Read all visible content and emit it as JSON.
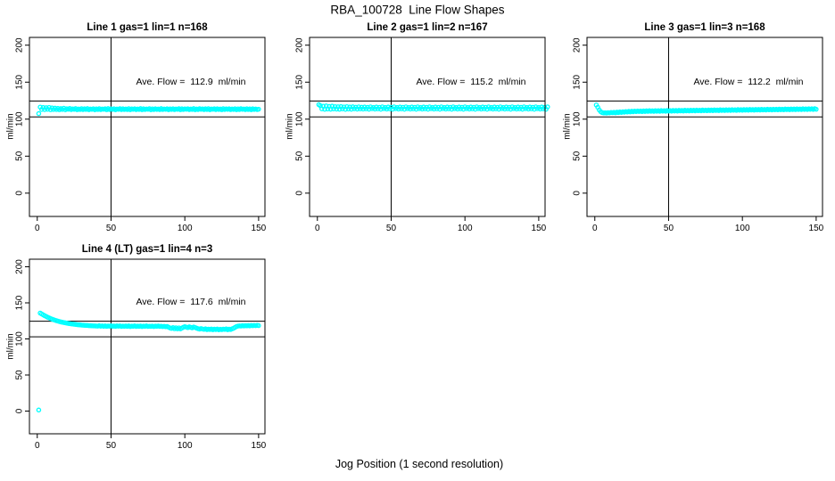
{
  "figure": {
    "title": "RBA_100728  Line Flow Shapes",
    "xlabel": "Jog Position (1 second resolution)",
    "ylabel": "ml/min",
    "bg": "#ffffff",
    "fg": "#000000",
    "point_color": "#00FFFF"
  },
  "axes": {
    "x_ticks": [
      0,
      50,
      100,
      150
    ],
    "y_ticks": [
      0,
      50,
      100,
      150,
      200
    ],
    "xlim": [
      -5.3,
      154.3
    ],
    "ylim": [
      -31.5,
      210.5
    ],
    "ref_vline_x": 50,
    "ref_hlines": [
      124.5,
      103
    ]
  },
  "chart_data": [
    {
      "type": "scatter",
      "title": "Line 1 gas=1 lin=1 n=168",
      "annotation": "Ave. Flow =  112.9  ml/min",
      "ave_flow": 112.9,
      "n": 168,
      "x_start": 1,
      "x_step": 1,
      "y": [
        107.5,
        116.3,
        113.2,
        115.8,
        112.9,
        115.5,
        113.4,
        115.9,
        112.8,
        115.2,
        113.1,
        114.9,
        113.0,
        114.6,
        112.8,
        114.3,
        113.2,
        114.8,
        112.7,
        114.1,
        113.4,
        114.5,
        112.9,
        113.9,
        113.3,
        114.4,
        112.8,
        113.8,
        113.1,
        114.2,
        112.9,
        114.0,
        113.2,
        114.3,
        112.8,
        113.7,
        113.3,
        114.1,
        112.7,
        113.9,
        113.1,
        114.2,
        112.9,
        113.8,
        113.4,
        114.0,
        112.8,
        114.3,
        113.0,
        113.9,
        113.2,
        114.1,
        112.7,
        113.8,
        113.3,
        114.2,
        112.9,
        114.0,
        113.1,
        113.7,
        113.0,
        114.2,
        112.8,
        113.9,
        113.3,
        114.1,
        112.9,
        113.7,
        113.2,
        114.3,
        112.8,
        114.0,
        113.1,
        113.8,
        113.4,
        114.2,
        112.7,
        113.9,
        113.0,
        114.1,
        113.2,
        113.8,
        112.9,
        114.3,
        113.1,
        113.7,
        113.3,
        114.0,
        112.8,
        113.9,
        113.2,
        114.1,
        112.9,
        113.8,
        113.3,
        114.2,
        112.8,
        114.0,
        113.1,
        113.9,
        113.4,
        114.1,
        112.9,
        113.7,
        113.2,
        114.3,
        112.8,
        113.8,
        113.0,
        114.2,
        113.3,
        113.9,
        112.9,
        114.0,
        113.1,
        114.2,
        112.8,
        113.7,
        113.4,
        114.1,
        112.9,
        114.0,
        113.2,
        113.8,
        112.8,
        114.2,
        113.1,
        113.9,
        113.3,
        114.0,
        112.9,
        113.7,
        113.2,
        114.1,
        112.8,
        113.9,
        113.0,
        114.2,
        113.3,
        113.8,
        112.9,
        114.1,
        113.1,
        113.9,
        112.8,
        114.0,
        113.2,
        113.7,
        113.0,
        113.5
      ]
    },
    {
      "type": "scatter",
      "title": "Line 2 gas=1 lin=2 n=167",
      "annotation": "Ave. Flow =  115.2  ml/min",
      "ave_flow": 115.2,
      "n": 167,
      "x_start": 1,
      "x_step": 1,
      "y": [
        119.6,
        118.2,
        114.0,
        117.5,
        113.4,
        117.9,
        113.8,
        117.2,
        113.5,
        117.6,
        113.9,
        116.9,
        113.6,
        116.8,
        113.4,
        117.0,
        114.0,
        116.5,
        113.3,
        116.9,
        113.8,
        116.4,
        113.5,
        116.7,
        114.1,
        116.2,
        113.6,
        116.6,
        113.9,
        116.1,
        113.7,
        116.4,
        114.0,
        116.0,
        113.5,
        116.6,
        114.2,
        115.8,
        113.7,
        116.4,
        114.0,
        116.0,
        113.5,
        116.6,
        114.2,
        115.8,
        113.7,
        116.4,
        114.0,
        116.0,
        113.5,
        116.6,
        114.2,
        115.8,
        113.7,
        116.4,
        114.0,
        116.0,
        113.5,
        116.6,
        114.2,
        115.8,
        113.7,
        116.4,
        114.0,
        116.0,
        113.5,
        116.6,
        114.2,
        115.8,
        113.7,
        116.4,
        114.0,
        116.0,
        113.5,
        116.6,
        114.2,
        115.8,
        113.7,
        116.4,
        114.0,
        116.0,
        113.5,
        116.6,
        114.2,
        115.8,
        113.7,
        116.4,
        114.0,
        116.0,
        113.5,
        116.6,
        114.2,
        115.8,
        113.7,
        116.4,
        114.0,
        116.0,
        113.5,
        116.6,
        114.2,
        115.8,
        113.7,
        116.4,
        114.0,
        116.0,
        113.5,
        116.6,
        114.2,
        115.8,
        113.7,
        116.4,
        114.0,
        116.0,
        113.5,
        116.6,
        114.2,
        115.8,
        113.7,
        116.4,
        114.0,
        116.0,
        113.5,
        116.6,
        114.2,
        115.8,
        113.7,
        116.4,
        114.0,
        116.0,
        113.5,
        116.6,
        114.2,
        115.8,
        113.7,
        116.4,
        114.0,
        116.0,
        113.5,
        116.6,
        114.2,
        115.8,
        113.7,
        116.4,
        114.0,
        116.0,
        113.5,
        116.6,
        114.2,
        115.8,
        113.7,
        116.4,
        114.0,
        116.0,
        113.5,
        116.6
      ]
    },
    {
      "type": "scatter",
      "title": "Line 3 gas=1 lin=3 n=168",
      "annotation": "Ave. Flow =  112.2  ml/min",
      "ave_flow": 112.2,
      "n": 168,
      "x_start": 1,
      "x_step": 1,
      "y": [
        119.2,
        116.0,
        112.5,
        110.0,
        108.9,
        108.4,
        108.6,
        108.3,
        108.8,
        108.5,
        109.0,
        108.7,
        109.2,
        108.6,
        109.5,
        108.9,
        109.8,
        109.1,
        110.0,
        109.4,
        110.3,
        109.6,
        110.5,
        109.8,
        110.7,
        110.0,
        110.9,
        110.2,
        111.0,
        110.4,
        111.0,
        110.2,
        111.2,
        110.4,
        111.3,
        110.5,
        111.4,
        110.6,
        111.3,
        110.5,
        111.5,
        110.7,
        111.4,
        110.6,
        111.6,
        110.8,
        111.5,
        110.7,
        111.7,
        110.9,
        111.6,
        110.8,
        111.8,
        111.0,
        111.7,
        110.9,
        111.9,
        111.1,
        111.8,
        111.0,
        112.0,
        111.2,
        111.9,
        111.1,
        112.1,
        111.3,
        112.0,
        111.2,
        112.2,
        111.4,
        112.1,
        111.3,
        112.3,
        111.5,
        112.2,
        111.4,
        112.4,
        111.6,
        112.3,
        111.5,
        112.5,
        111.7,
        112.4,
        111.6,
        112.6,
        111.8,
        112.5,
        111.7,
        112.7,
        111.9,
        112.6,
        111.8,
        112.8,
        112.0,
        112.7,
        111.9,
        112.9,
        112.1,
        112.8,
        112.0,
        113.0,
        112.2,
        112.9,
        112.1,
        113.1,
        112.3,
        113.0,
        112.2,
        113.2,
        112.4,
        113.1,
        112.3,
        113.3,
        112.5,
        113.2,
        112.4,
        113.4,
        112.6,
        113.3,
        112.5,
        113.5,
        112.7,
        113.4,
        112.6,
        113.6,
        112.8,
        113.5,
        112.7,
        113.7,
        112.9,
        113.6,
        112.8,
        113.8,
        113.0,
        113.7,
        112.9,
        113.9,
        113.1,
        113.8,
        113.0,
        114.0,
        113.2,
        113.9,
        113.1,
        114.1,
        113.3,
        114.0,
        113.2,
        114.2,
        113.4
      ]
    },
    {
      "type": "scatter",
      "title": "Line 4 (LT) gas=1 lin=4 n=3",
      "annotation": "Ave. Flow =  117.6  ml/min",
      "ave_flow": 117.6,
      "n": 3,
      "x_start": 1,
      "x_step": 1,
      "y": [
        1.5,
        135.8,
        134.6,
        133.4,
        132.2,
        131.2,
        130.1,
        129.2,
        128.3,
        127.5,
        126.7,
        126.0,
        125.3,
        124.7,
        124.1,
        123.6,
        123.1,
        122.7,
        122.3,
        121.9,
        121.5,
        121.2,
        120.9,
        120.6,
        120.3,
        120.1,
        119.8,
        119.6,
        119.4,
        119.2,
        119.0,
        118.9,
        118.7,
        118.6,
        118.4,
        118.3,
        118.2,
        118.1,
        118.0,
        117.9,
        117.8,
        118.3,
        117.6,
        118.1,
        117.5,
        118.0,
        117.4,
        117.9,
        117.6,
        118.2,
        117.5,
        117.9,
        117.4,
        118.0,
        117.6,
        118.1,
        117.3,
        117.8,
        117.5,
        117.9,
        117.4,
        118.0,
        117.2,
        117.8,
        117.5,
        118.1,
        117.3,
        117.7,
        117.4,
        117.9,
        117.2,
        117.8,
        117.5,
        118.0,
        117.3,
        117.6,
        117.4,
        117.8,
        117.2,
        117.7,
        117.5,
        117.9,
        117.3,
        117.6,
        117.1,
        117.5,
        116.9,
        117.3,
        116.3,
        115.2,
        114.6,
        115.8,
        114.2,
        115.5,
        114.0,
        115.3,
        113.9,
        115.1,
        116.2,
        117.0,
        116.4,
        115.7,
        116.8,
        116.0,
        115.4,
        116.5,
        115.8,
        114.9,
        114.2,
        113.6,
        114.4,
        113.8,
        113.3,
        114.0,
        112.9,
        113.6,
        113.1,
        113.8,
        112.8,
        113.5,
        113.0,
        113.7,
        112.7,
        113.4,
        112.9,
        113.6,
        113.2,
        113.9,
        112.8,
        113.5,
        113.1,
        114.0,
        114.8,
        116.0,
        117.2,
        117.8,
        118.1,
        117.9,
        118.3,
        118.0,
        118.4,
        118.2,
        118.5,
        118.1,
        118.6,
        118.3,
        118.7,
        118.4,
        118.8,
        118.5
      ]
    }
  ]
}
